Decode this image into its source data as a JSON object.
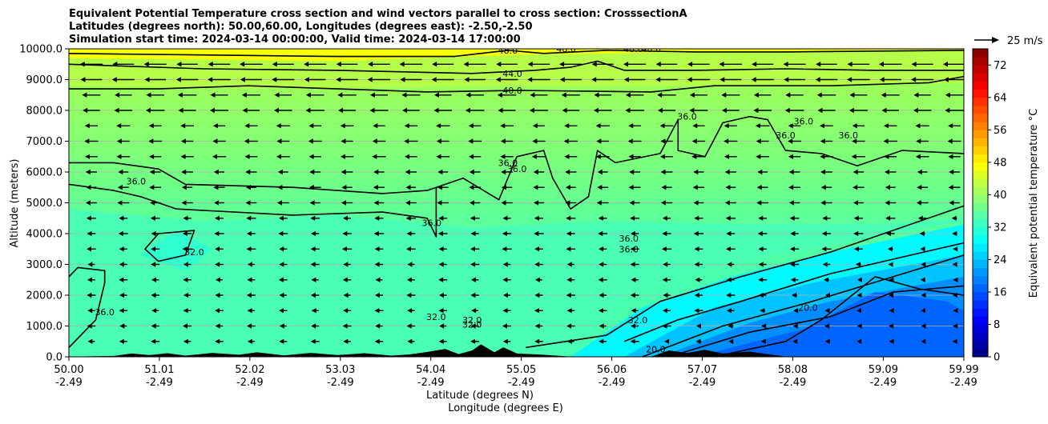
{
  "chart_data": {
    "type": "contour",
    "title_lines": [
      "Equivalent Potential Temperature cross section and wind vectors parallel to cross section: CrosssectionA",
      "Latitudes (degrees north): 50.00,60.00, Longitudes (degrees east): -2.50,-2.50",
      "Simulation start time: 2024-03-14 00:00:00, Valid time: 2024-03-14 17:00:00"
    ],
    "xlabel_line1": "Latitude (degrees N)",
    "xlabel_line2": "Longitude (degrees E)",
    "ylabel": "Altitude (meters)",
    "xlim": [
      50.0,
      59.99
    ],
    "ylim": [
      0,
      10000
    ],
    "x_ticks": [
      {
        "lat": 50.0,
        "lat_label": "50.00",
        "lon_label": "-2.49"
      },
      {
        "lat": 51.01,
        "lat_label": "51.01",
        "lon_label": "-2.49"
      },
      {
        "lat": 52.02,
        "lat_label": "52.02",
        "lon_label": "-2.49"
      },
      {
        "lat": 53.03,
        "lat_label": "53.03",
        "lon_label": "-2.49"
      },
      {
        "lat": 54.04,
        "lat_label": "54.04",
        "lon_label": "-2.49"
      },
      {
        "lat": 55.05,
        "lat_label": "55.05",
        "lon_label": "-2.49"
      },
      {
        "lat": 56.06,
        "lat_label": "56.06",
        "lon_label": "-2.49"
      },
      {
        "lat": 57.07,
        "lat_label": "57.07",
        "lon_label": "-2.49"
      },
      {
        "lat": 58.08,
        "lat_label": "58.08",
        "lon_label": "-2.49"
      },
      {
        "lat": 59.09,
        "lat_label": "59.09",
        "lon_label": "-2.49"
      },
      {
        "lat": 59.99,
        "lat_label": "59.99",
        "lon_label": "-2.49"
      }
    ],
    "y_ticks": [
      {
        "value": 0,
        "label": "0.0"
      },
      {
        "value": 1000,
        "label": "1000.0"
      },
      {
        "value": 2000,
        "label": "2000.0"
      },
      {
        "value": 3000,
        "label": "3000.0"
      },
      {
        "value": 4000,
        "label": "4000.0"
      },
      {
        "value": 5000,
        "label": "5000.0"
      },
      {
        "value": 6000,
        "label": "6000.0"
      },
      {
        "value": 7000,
        "label": "7000.0"
      },
      {
        "value": 8000,
        "label": "8000.0"
      },
      {
        "value": 9000,
        "label": "9000.0"
      },
      {
        "value": 10000,
        "label": "10000.0"
      }
    ],
    "grid": "horizontal",
    "colorbar": {
      "label": "Equivalent potential temperature $^\\circ$C",
      "label_display": "Equivalent potential temperature °C",
      "range": [
        0,
        76
      ],
      "ticks": [
        0,
        8,
        16,
        24,
        32,
        40,
        48,
        56,
        64,
        72
      ],
      "tick_labels": [
        "0",
        "8",
        "16",
        "24",
        "32",
        "40",
        "48",
        "56",
        "64",
        "72"
      ],
      "colormap": "jet"
    },
    "quiver_key": {
      "label": "25 m/s",
      "speed": 25
    },
    "field_profile": {
      "description_levels_m": [
        0,
        1000,
        2000,
        3000,
        4000,
        5000,
        6000,
        7000,
        8000,
        9000,
        10000
      ],
      "south_theta_e_C": [
        33,
        33,
        33,
        33,
        33,
        34,
        36,
        37,
        39,
        43,
        48
      ],
      "north_theta_e_C": [
        17,
        18,
        20,
        25,
        30,
        33,
        36,
        37,
        39,
        43,
        48
      ]
    },
    "contour_labels": [
      {
        "text": "48.0",
        "lat": 54.9,
        "alt": 9950
      },
      {
        "text": "48.0",
        "lat": 55.55,
        "alt": 10000
      },
      {
        "text": "48.0",
        "lat": 56.3,
        "alt": 10000
      },
      {
        "text": "48.0",
        "lat": 56.5,
        "alt": 10000
      },
      {
        "text": "44.0",
        "lat": 54.95,
        "alt": 9200
      },
      {
        "text": "40.0",
        "lat": 54.95,
        "alt": 8650
      },
      {
        "text": "36.0",
        "lat": 50.75,
        "alt": 5700
      },
      {
        "text": "36.0",
        "lat": 54.05,
        "alt": 4350
      },
      {
        "text": "36.0",
        "lat": 54.9,
        "alt": 6300
      },
      {
        "text": "36.0",
        "lat": 55.0,
        "alt": 6100
      },
      {
        "text": "36.0",
        "lat": 56.9,
        "alt": 7800
      },
      {
        "text": "36.0",
        "lat": 58.0,
        "alt": 7200
      },
      {
        "text": "36.0",
        "lat": 58.2,
        "alt": 7650
      },
      {
        "text": "36.0",
        "lat": 58.7,
        "alt": 7200
      },
      {
        "text": "36.0",
        "lat": 56.25,
        "alt": 3850
      },
      {
        "text": "36.0",
        "lat": 56.25,
        "alt": 3500
      },
      {
        "text": "36.0",
        "lat": 50.4,
        "alt": 1450
      },
      {
        "text": "32.0",
        "lat": 51.4,
        "alt": 3400
      },
      {
        "text": "32.0",
        "lat": 54.1,
        "alt": 1300
      },
      {
        "text": "32.0",
        "lat": 54.5,
        "alt": 1200
      },
      {
        "text": "32.0",
        "lat": 54.5,
        "alt": 1050
      },
      {
        "text": "32.0",
        "lat": 56.35,
        "alt": 1200
      },
      {
        "text": "20.0",
        "lat": 58.25,
        "alt": 1600
      },
      {
        "text": "20.0",
        "lat": 56.55,
        "alt": 250
      }
    ],
    "terrain_m": [
      [
        50.0,
        0
      ],
      [
        50.5,
        20
      ],
      [
        50.7,
        100
      ],
      [
        50.9,
        50
      ],
      [
        51.1,
        110
      ],
      [
        51.3,
        30
      ],
      [
        51.6,
        120
      ],
      [
        51.9,
        60
      ],
      [
        52.1,
        140
      ],
      [
        52.4,
        40
      ],
      [
        52.7,
        120
      ],
      [
        53.0,
        50
      ],
      [
        53.3,
        110
      ],
      [
        53.6,
        30
      ],
      [
        53.8,
        70
      ],
      [
        54.0,
        150
      ],
      [
        54.2,
        250
      ],
      [
        54.35,
        80
      ],
      [
        54.5,
        200
      ],
      [
        54.6,
        400
      ],
      [
        54.75,
        140
      ],
      [
        54.85,
        300
      ],
      [
        55.0,
        100
      ],
      [
        55.3,
        60
      ],
      [
        55.6,
        0
      ],
      [
        56.5,
        0
      ],
      [
        56.7,
        200
      ],
      [
        56.9,
        120
      ],
      [
        57.1,
        220
      ],
      [
        57.3,
        100
      ],
      [
        57.6,
        160
      ],
      [
        58.0,
        0
      ],
      [
        59.99,
        0
      ]
    ]
  }
}
